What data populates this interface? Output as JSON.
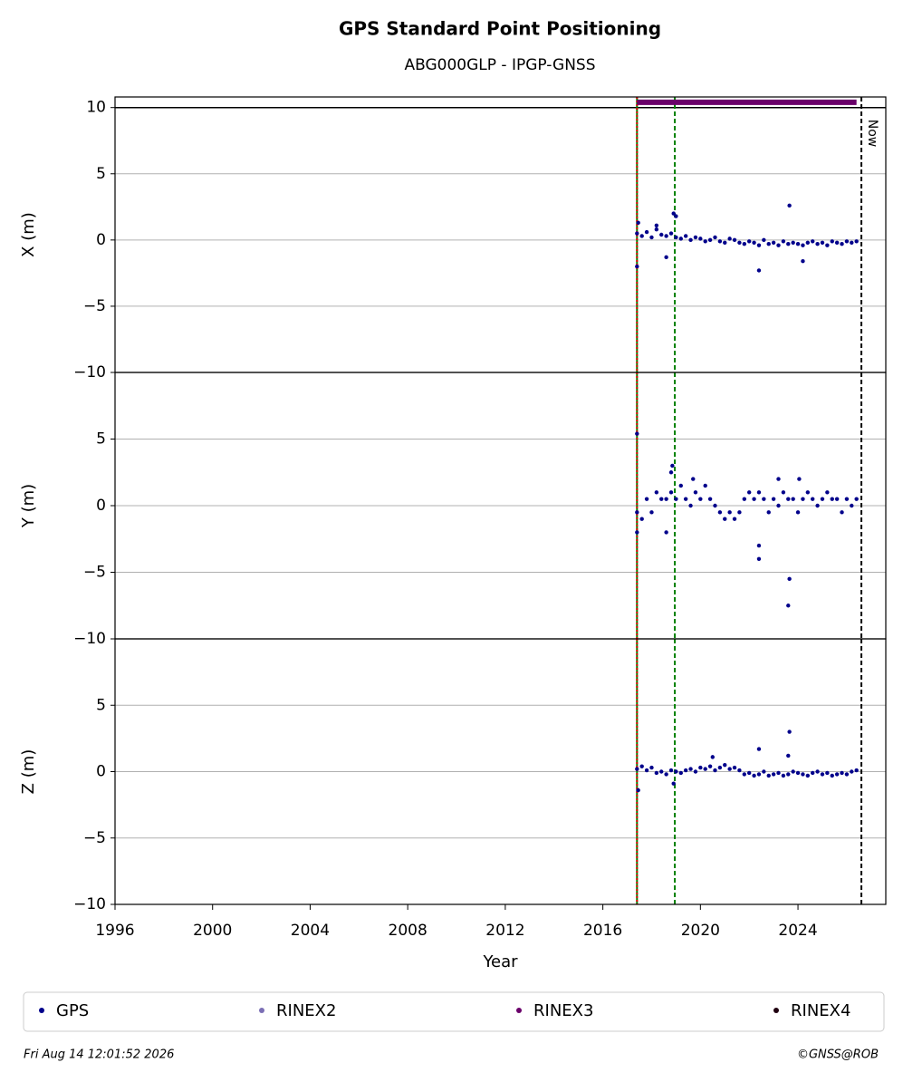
{
  "header": {
    "title": "GPS Standard Point Positioning",
    "subtitle": "ABG000GLP - IPGP-GNSS"
  },
  "legend": [
    {
      "name": "GPS",
      "color": "#00008b"
    },
    {
      "name": "RINEX2",
      "color": "#7b6fb5"
    },
    {
      "name": "RINEX3",
      "color": "#6a006a"
    },
    {
      "name": "RINEX4",
      "color": "#200010"
    }
  ],
  "footer": {
    "left": "Fri Aug 14 12:01:52 2026",
    "right": "©GNSS@ROB"
  },
  "chart_data": [
    {
      "type": "scatter",
      "ylabel": "X (m)",
      "xlim": [
        1996,
        2027.6
      ],
      "ylim": [
        -10,
        10.8
      ],
      "yticks": [
        {
          "value": -10,
          "label": "−10"
        },
        {
          "value": -5,
          "label": "−5"
        },
        0,
        5,
        10
      ],
      "grid": true,
      "hline": 10,
      "vlines": [
        {
          "x": 2017.4,
          "color": "#008000",
          "style": "solid"
        },
        {
          "x": 2017.4,
          "color": "#e00000",
          "style": "dotted"
        },
        {
          "x": 2018.95,
          "color": "#008000",
          "style": "dashed"
        },
        {
          "x": 2026.6,
          "color": "#000000",
          "style": "dashed",
          "label": "Now"
        }
      ],
      "series": [
        {
          "name": "GPS",
          "color": "#00008b",
          "x": [
            2017.4,
            2017.6,
            2017.8,
            2018.0,
            2018.2,
            2018.4,
            2018.6,
            2018.8,
            2019.0,
            2019.2,
            2019.4,
            2019.6,
            2019.8,
            2020.0,
            2020.2,
            2020.4,
            2020.6,
            2020.8,
            2021.0,
            2021.2,
            2021.4,
            2021.6,
            2021.8,
            2022.0,
            2022.2,
            2022.4,
            2022.6,
            2022.8,
            2023.0,
            2023.2,
            2023.4,
            2023.6,
            2023.8,
            2024.0,
            2024.2,
            2024.4,
            2024.6,
            2024.8,
            2025.0,
            2025.2,
            2025.4,
            2025.6,
            2025.8,
            2026.0,
            2026.2,
            2026.4,
            2017.4,
            2017.45,
            2018.9,
            2019.0,
            2018.6,
            2022.4,
            2023.65,
            2024.2,
            2018.2
          ],
          "values": [
            0.5,
            0.3,
            0.6,
            0.2,
            0.8,
            0.4,
            0.3,
            0.5,
            0.2,
            0.1,
            0.3,
            0.0,
            0.2,
            0.1,
            -0.1,
            0.0,
            0.2,
            -0.1,
            -0.2,
            0.1,
            0.0,
            -0.2,
            -0.3,
            -0.1,
            -0.2,
            -0.4,
            0.0,
            -0.3,
            -0.2,
            -0.4,
            -0.1,
            -0.3,
            -0.2,
            -0.3,
            -0.4,
            -0.2,
            -0.1,
            -0.3,
            -0.2,
            -0.4,
            -0.1,
            -0.2,
            -0.3,
            -0.1,
            -0.2,
            -0.1,
            -2.0,
            1.3,
            2.0,
            1.8,
            -1.3,
            -2.3,
            2.6,
            -1.6,
            1.1
          ]
        },
        {
          "name": "RINEX3",
          "color": "#6a006a",
          "x": [
            2017.4,
            2026.4
          ],
          "values": [
            10.4,
            10.4
          ]
        }
      ]
    },
    {
      "type": "scatter",
      "ylabel": "Y (m)",
      "xlim": [
        1996,
        2027.6
      ],
      "ylim": [
        -10,
        10
      ],
      "yticks": [
        {
          "value": -10,
          "label": "−10"
        },
        {
          "value": -5,
          "label": "−5"
        },
        0,
        5
      ],
      "grid": true,
      "vlines": [
        {
          "x": 2017.4,
          "color": "#008000",
          "style": "solid"
        },
        {
          "x": 2017.4,
          "color": "#e00000",
          "style": "dotted"
        },
        {
          "x": 2018.95,
          "color": "#008000",
          "style": "dashed"
        },
        {
          "x": 2026.6,
          "color": "#000000",
          "style": "dashed"
        }
      ],
      "series": [
        {
          "name": "GPS",
          "color": "#00008b",
          "x": [
            2017.4,
            2017.6,
            2017.8,
            2018.0,
            2018.2,
            2018.4,
            2018.6,
            2018.8,
            2019.0,
            2019.2,
            2019.4,
            2019.6,
            2019.8,
            2020.0,
            2020.2,
            2020.4,
            2020.6,
            2020.8,
            2021.0,
            2021.2,
            2021.4,
            2021.6,
            2021.8,
            2022.0,
            2022.2,
            2022.4,
            2022.6,
            2022.8,
            2023.0,
            2023.2,
            2023.4,
            2023.6,
            2023.8,
            2024.0,
            2024.2,
            2024.4,
            2024.6,
            2024.8,
            2025.0,
            2025.2,
            2025.4,
            2025.6,
            2025.8,
            2026.0,
            2026.2,
            2026.4,
            2017.4,
            2017.4,
            2018.85,
            2018.8,
            2018.6,
            2019.7,
            2022.4,
            2022.4,
            2023.65,
            2023.6,
            2023.2,
            2024.05
          ],
          "values": [
            -0.5,
            -1,
            0.5,
            -0.5,
            1,
            0.5,
            0.5,
            1,
            0.5,
            1.5,
            0.5,
            0,
            1,
            0.5,
            1.5,
            0.5,
            0,
            -0.5,
            -1,
            -0.5,
            -1,
            -0.5,
            0.5,
            1,
            0.5,
            1,
            0.5,
            -0.5,
            0.5,
            0,
            1,
            0.5,
            0.5,
            -0.5,
            0.5,
            1,
            0.5,
            0,
            0.5,
            1,
            0.5,
            0.5,
            -0.5,
            0.5,
            0,
            0.5,
            5.4,
            -2,
            3,
            2.5,
            -2,
            2,
            -3,
            -4,
            -5.5,
            -7.5,
            2,
            2
          ]
        }
      ]
    },
    {
      "type": "scatter",
      "ylabel": "Z (m)",
      "xlabel": "Year",
      "xlim": [
        1996,
        2027.6
      ],
      "ylim": [
        -10,
        10
      ],
      "xticks": [
        1996,
        2000,
        2004,
        2008,
        2012,
        2016,
        2020,
        2024
      ],
      "yticks": [
        {
          "value": -10,
          "label": "−10"
        },
        {
          "value": -5,
          "label": "−5"
        },
        0,
        5
      ],
      "grid": true,
      "vlines": [
        {
          "x": 2017.4,
          "color": "#008000",
          "style": "solid"
        },
        {
          "x": 2017.4,
          "color": "#e00000",
          "style": "dotted"
        },
        {
          "x": 2018.95,
          "color": "#008000",
          "style": "dashed"
        },
        {
          "x": 2026.6,
          "color": "#000000",
          "style": "dashed"
        }
      ],
      "series": [
        {
          "name": "GPS",
          "color": "#00008b",
          "x": [
            2017.4,
            2017.6,
            2017.8,
            2018.0,
            2018.2,
            2018.4,
            2018.6,
            2018.8,
            2019.0,
            2019.2,
            2019.4,
            2019.6,
            2019.8,
            2020.0,
            2020.2,
            2020.4,
            2020.6,
            2020.8,
            2021.0,
            2021.2,
            2021.4,
            2021.6,
            2021.8,
            2022.0,
            2022.2,
            2022.4,
            2022.6,
            2022.8,
            2023.0,
            2023.2,
            2023.4,
            2023.6,
            2023.8,
            2024.0,
            2024.2,
            2024.4,
            2024.6,
            2024.8,
            2025.0,
            2025.2,
            2025.4,
            2025.6,
            2025.8,
            2026.0,
            2026.2,
            2026.4,
            2017.45,
            2018.9,
            2020.5,
            2022.4,
            2023.65,
            2023.6
          ],
          "values": [
            0.2,
            0.4,
            0.1,
            0.3,
            -0.1,
            0.0,
            -0.2,
            0.1,
            0.0,
            -0.1,
            0.1,
            0.2,
            0.0,
            0.3,
            0.2,
            0.4,
            0.1,
            0.3,
            0.5,
            0.2,
            0.3,
            0.1,
            -0.2,
            -0.1,
            -0.3,
            -0.2,
            0.0,
            -0.3,
            -0.2,
            -0.1,
            -0.3,
            -0.2,
            0.0,
            -0.1,
            -0.2,
            -0.3,
            -0.1,
            0.0,
            -0.2,
            -0.1,
            -0.3,
            -0.2,
            -0.1,
            -0.2,
            0.0,
            0.1,
            -1.4,
            -0.9,
            1.1,
            1.7,
            3.0,
            1.2
          ]
        }
      ]
    }
  ]
}
